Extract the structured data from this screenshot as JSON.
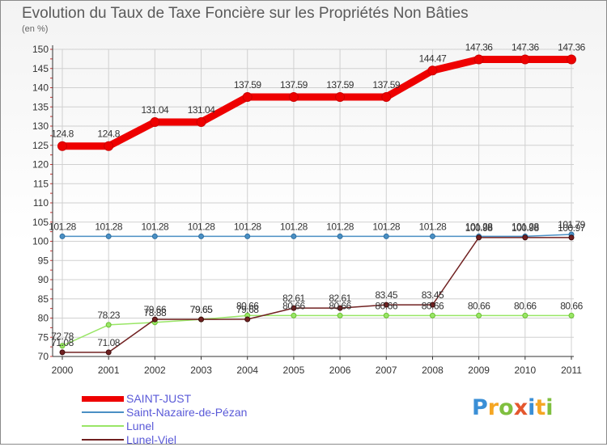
{
  "title": "Evolution du Taux de Taxe Foncière sur les Propriétés Non Bâties",
  "unit": "(en %)",
  "logo": {
    "text": "Proxiti",
    "letters": [
      "P",
      "r",
      "o",
      "x",
      "i",
      "t",
      "i"
    ],
    "colors": [
      "#3a8fd6",
      "#f5a623",
      "#7fbf3f",
      "#e4572e",
      "#3a8fd6",
      "#f5a623",
      "#7fbf3f"
    ]
  },
  "chart_data": {
    "type": "line",
    "title": "Evolution du Taux de Taxe Foncière sur les Propriétés Non Bâties",
    "ylabel": "(en %)",
    "xlabel": "",
    "ylim": [
      70,
      150
    ],
    "yticks": [
      70,
      75,
      80,
      85,
      90,
      95,
      100,
      105,
      110,
      115,
      120,
      125,
      130,
      135,
      140,
      145,
      150
    ],
    "grid": true,
    "categories": [
      "2000",
      "2001",
      "2002",
      "2003",
      "2004",
      "2005",
      "2006",
      "2007",
      "2008",
      "2009",
      "2010",
      "2011"
    ],
    "series": [
      {
        "name": "SAINT-JUST",
        "color": "#ee0000",
        "values": [
          124.8,
          124.8,
          131.04,
          131.04,
          137.59,
          137.59,
          137.59,
          137.59,
          144.47,
          147.36,
          147.36,
          147.36
        ],
        "labels": [
          "124.8",
          "124.8",
          "131.04",
          "131.04",
          "137.59",
          "137.59",
          "137.59",
          "137.59",
          "144.47",
          "147.36",
          "147.36",
          "147.36"
        ]
      },
      {
        "name": "Saint-Nazaire-de-Pézan",
        "color": "#4a8fc4",
        "values": [
          101.28,
          101.28,
          101.28,
          101.28,
          101.28,
          101.28,
          101.28,
          101.28,
          101.28,
          101.28,
          101.28,
          101.79
        ],
        "labels": [
          "101.28",
          "101.28",
          "101.28",
          "101.28",
          "101.28",
          "101.28",
          "101.28",
          "101.28",
          "101.28",
          "101.28",
          "101.28",
          "101.79"
        ]
      },
      {
        "name": "Lunel",
        "color": "#99e666",
        "values": [
          72.78,
          78.23,
          78.88,
          79.65,
          80.66,
          80.66,
          80.66,
          80.66,
          80.66,
          80.66,
          80.66,
          80.66
        ],
        "labels": [
          "72.78",
          "78.23",
          "78.88",
          "79.65",
          "80.66",
          "80.66",
          "80.66",
          "80.66",
          "80.66",
          "80.66",
          "80.66",
          "80.66"
        ]
      },
      {
        "name": "Lunel-Viel",
        "color": "#702020",
        "values": [
          71.08,
          71.08,
          79.66,
          79.65,
          79.68,
          82.61,
          82.61,
          83.45,
          83.45,
          100.98,
          100.98,
          100.97
        ],
        "labels": [
          "71.08",
          "71.08",
          "79.66",
          "79.65",
          "79.68",
          "82.61",
          "82.61",
          "83.45",
          "83.45",
          "100.98",
          "100.98",
          "100.97"
        ]
      }
    ]
  }
}
